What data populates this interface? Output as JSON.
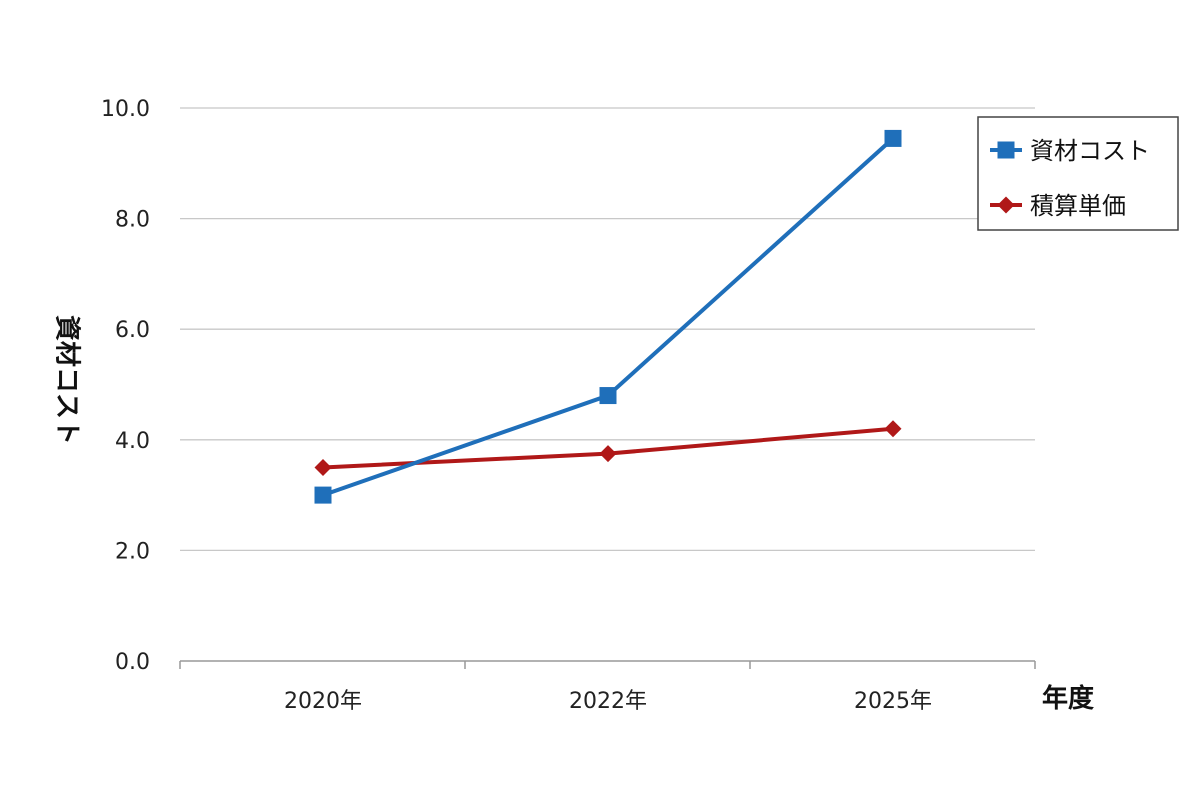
{
  "chart_data": {
    "type": "line",
    "categories": [
      "2020年",
      "2022年",
      "2025年"
    ],
    "series": [
      {
        "name": "資材コスト",
        "values": [
          3.0,
          4.8,
          9.45
        ],
        "color": "#1f6fba",
        "marker": "square"
      },
      {
        "name": "積算単価",
        "values": [
          3.5,
          3.75,
          4.2
        ],
        "color": "#b01818",
        "marker": "diamond"
      }
    ],
    "ylabel": "資材コスト",
    "xlabel": "年度",
    "ylim": [
      0,
      10
    ],
    "yticks": [
      "0.0",
      "2.0",
      "4.0",
      "6.0",
      "8.0",
      "10.0"
    ],
    "grid": true,
    "legend_position": "top-right"
  }
}
